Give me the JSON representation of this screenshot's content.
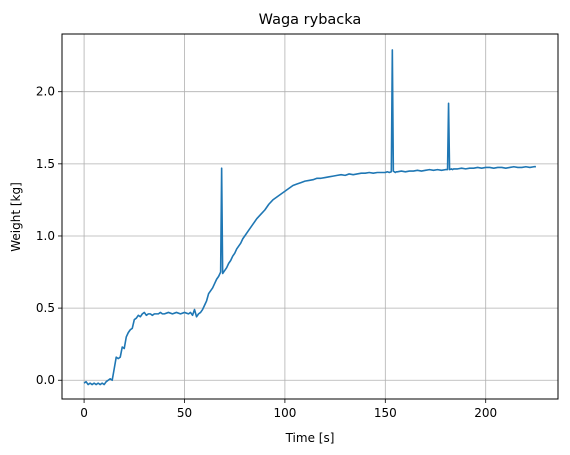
{
  "chart_data": {
    "type": "line",
    "title": "Waga rybacka",
    "xlabel": "Time [s]",
    "ylabel": "Weight [kg]",
    "xlim": [
      -11,
      236
    ],
    "ylim": [
      -0.13,
      2.4
    ],
    "xticks": [
      0,
      50,
      100,
      150,
      200
    ],
    "yticks": [
      0.0,
      0.5,
      1.0,
      1.5,
      2.0
    ],
    "xtick_labels": [
      "0",
      "50",
      "100",
      "150",
      "200"
    ],
    "ytick_labels": [
      "0.0",
      "0.5",
      "1.0",
      "1.5",
      "2.0"
    ],
    "grid": true,
    "series": [
      {
        "color": "#1f77b4",
        "x": [
          0,
          1,
          2,
          3,
          4,
          5,
          6,
          7,
          8,
          9,
          10,
          11,
          12,
          13,
          14,
          15,
          16,
          17,
          18,
          19,
          20,
          21,
          22,
          23,
          24,
          25,
          26,
          27,
          28,
          29,
          30,
          31,
          32,
          33,
          34,
          35,
          36,
          37,
          38,
          39,
          40,
          42,
          44,
          46,
          48,
          50,
          52,
          53,
          54,
          55,
          56,
          57,
          58,
          59,
          60,
          61,
          62,
          63,
          64,
          65,
          66,
          67,
          68,
          68.5,
          69,
          70,
          71,
          72,
          73,
          74,
          75,
          76,
          77,
          78,
          79,
          80,
          82,
          84,
          86,
          88,
          90,
          92,
          94,
          96,
          98,
          100,
          102,
          104,
          106,
          108,
          110,
          112,
          114,
          116,
          118,
          120,
          122,
          124,
          126,
          128,
          130,
          132,
          134,
          136,
          138,
          140,
          142,
          144,
          146,
          148,
          150,
          151,
          152,
          153,
          153.5,
          154,
          155,
          155.5,
          156,
          158,
          160,
          162,
          164,
          166,
          168,
          170,
          172,
          174,
          176,
          178,
          180,
          181,
          181.5,
          182,
          183,
          183.5,
          184,
          186,
          188,
          190,
          192,
          194,
          196,
          198,
          200,
          202,
          204,
          206,
          208,
          210,
          212,
          214,
          216,
          218,
          220,
          222,
          224,
          225
        ],
        "y": [
          -0.02,
          -0.01,
          -0.03,
          -0.02,
          -0.03,
          -0.02,
          -0.03,
          -0.02,
          -0.03,
          -0.02,
          -0.03,
          -0.01,
          0.0,
          0.01,
          0.0,
          0.08,
          0.16,
          0.15,
          0.16,
          0.23,
          0.22,
          0.3,
          0.33,
          0.35,
          0.36,
          0.42,
          0.43,
          0.45,
          0.44,
          0.46,
          0.47,
          0.45,
          0.46,
          0.46,
          0.45,
          0.46,
          0.46,
          0.46,
          0.47,
          0.46,
          0.46,
          0.47,
          0.46,
          0.47,
          0.46,
          0.47,
          0.46,
          0.47,
          0.45,
          0.49,
          0.44,
          0.46,
          0.47,
          0.49,
          0.52,
          0.55,
          0.6,
          0.62,
          0.64,
          0.67,
          0.7,
          0.72,
          0.75,
          1.47,
          0.74,
          0.76,
          0.78,
          0.81,
          0.83,
          0.86,
          0.88,
          0.91,
          0.93,
          0.95,
          0.98,
          1.0,
          1.04,
          1.08,
          1.12,
          1.15,
          1.18,
          1.22,
          1.25,
          1.27,
          1.29,
          1.31,
          1.33,
          1.35,
          1.36,
          1.37,
          1.38,
          1.385,
          1.39,
          1.4,
          1.4,
          1.405,
          1.41,
          1.415,
          1.42,
          1.425,
          1.42,
          1.43,
          1.425,
          1.43,
          1.435,
          1.435,
          1.44,
          1.435,
          1.44,
          1.44,
          1.44,
          1.445,
          1.44,
          1.445,
          2.29,
          1.45,
          1.44,
          1.445,
          1.445,
          1.45,
          1.445,
          1.45,
          1.45,
          1.455,
          1.45,
          1.455,
          1.46,
          1.455,
          1.46,
          1.455,
          1.46,
          1.46,
          1.92,
          1.46,
          1.465,
          1.46,
          1.465,
          1.465,
          1.47,
          1.465,
          1.47,
          1.47,
          1.475,
          1.47,
          1.475,
          1.475,
          1.47,
          1.475,
          1.475,
          1.47,
          1.475,
          1.48,
          1.475,
          1.475,
          1.48,
          1.475,
          1.48,
          1.48
        ]
      }
    ]
  }
}
